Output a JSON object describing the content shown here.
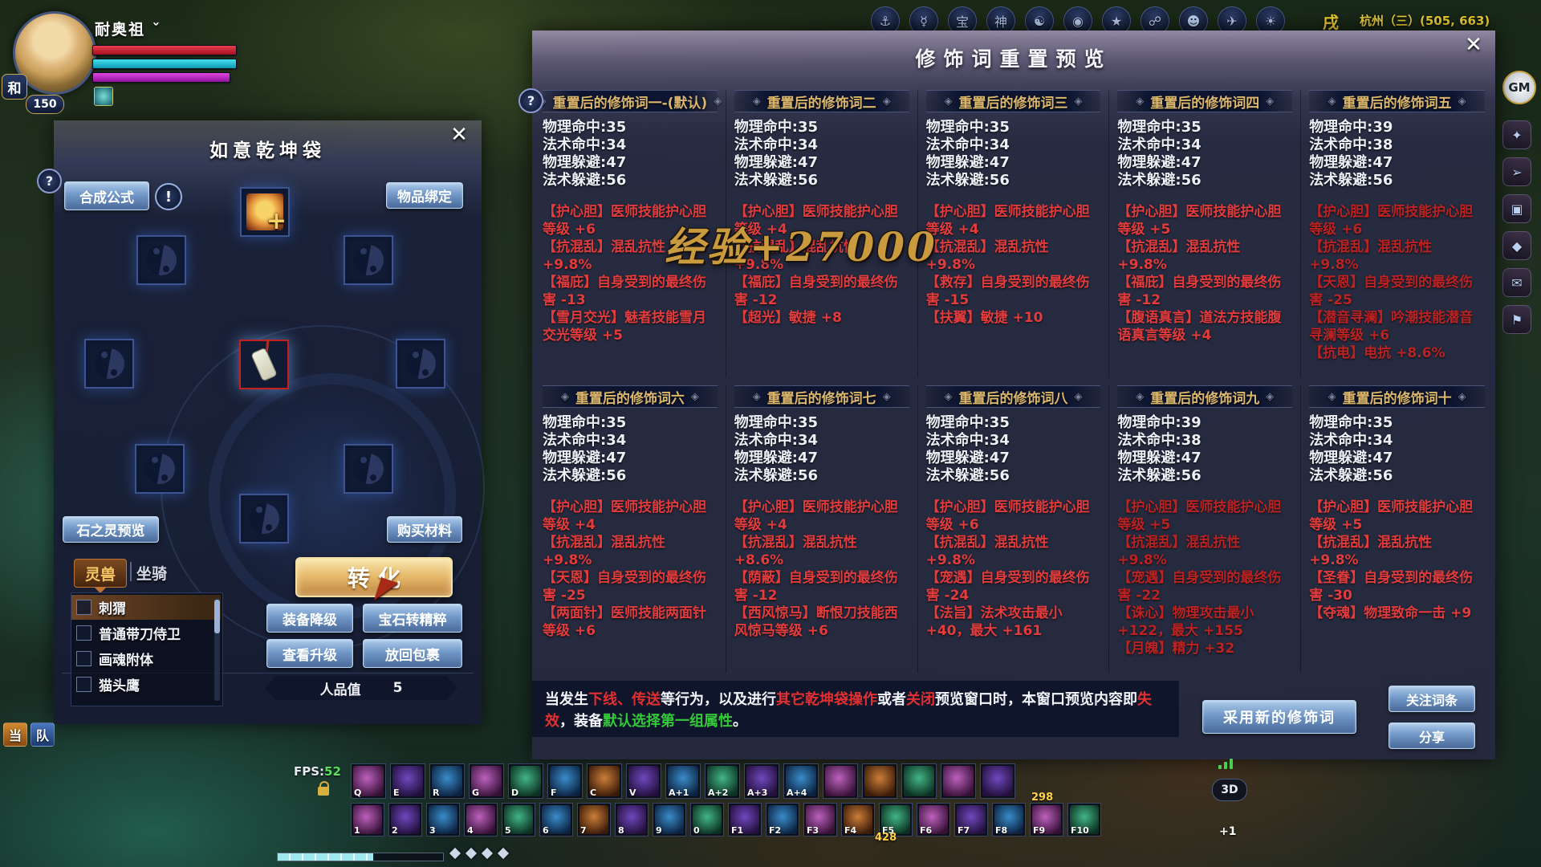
{
  "hud": {
    "player": {
      "name": "耐奥祖 ˇ",
      "level": "150",
      "badge": "和"
    },
    "top_right": {
      "time": "戌",
      "location": "杭州（三）(505, 663)",
      "gm": "GM",
      "icons": [
        "⚓",
        "☿",
        "宝",
        "神",
        "☯",
        "◉",
        "★",
        "☍",
        "☻",
        "✈",
        "☀"
      ]
    },
    "right_edge_icons": [
      "✦",
      "➢",
      "▣",
      "◆",
      "✉",
      "⚑"
    ],
    "fps_label": "FPS:",
    "fps_value": "52",
    "xp_float": "经验+27000",
    "chat_tabs": [
      "当",
      "队"
    ],
    "skill_row1": [
      "Q",
      "E",
      "R",
      "G",
      "D",
      "F",
      "C",
      "V",
      "A+1",
      "A+2",
      "A+3",
      "A+4",
      "",
      "",
      "",
      "",
      ""
    ],
    "skill_row2": [
      "1",
      "2",
      "3",
      "4",
      "5",
      "6",
      "7",
      "8",
      "9",
      "0",
      "F1",
      "F2",
      "F3",
      "F4",
      "F5",
      "F6",
      "F7",
      "F8",
      "F9",
      "F10"
    ],
    "count_row1": "298",
    "count_row2": "428",
    "plus_one": "+1",
    "view_3d": "3D"
  },
  "bag_window": {
    "title": "如意乾坤袋",
    "help": "?",
    "alert": "!",
    "buttons": {
      "formula": "合成公式",
      "bind": "物品绑定",
      "stone_preview": "石之灵预览",
      "buy": "购买材料",
      "transform": "转化",
      "downgrade": "装备降级",
      "gem": "宝石转精粹",
      "upgrade": "查看升级",
      "return": "放回包裹"
    },
    "karma_label": "人品值",
    "karma_value": "5",
    "tabs": {
      "pet": "灵兽",
      "mount": "坐骑"
    },
    "list": [
      "刺猬",
      "普通带刀侍卫",
      "画魂附体",
      "猫头鹰"
    ]
  },
  "preview_window": {
    "title": "修饰词重置预览",
    "groups": [
      {
        "title": "重置后的修饰词一-(默认)",
        "stats": [
          "物理命中:35",
          "法术命中:34",
          "物理躲避:47",
          "法术躲避:56"
        ],
        "mods": [
          "【护心胆】医师技能护心胆等级 +6",
          "【抗混乱】混乱抗性 +9.8%",
          "【福庇】自身受到的最终伤害 -13",
          "【雪月交光】魅者技能雪月交光等级 +5"
        ]
      },
      {
        "title": "重置后的修饰词二",
        "stats": [
          "物理命中:35",
          "法术命中:34",
          "物理躲避:47",
          "法术躲避:56"
        ],
        "mods": [
          "【护心胆】医师技能护心胆等级 +4",
          "【抗混乱】混乱抗性 +9.8%",
          "【福庇】自身受到的最终伤害 -12",
          "【超光】敏捷 +8"
        ]
      },
      {
        "title": "重置后的修饰词三",
        "stats": [
          "物理命中:35",
          "法术命中:34",
          "物理躲避:47",
          "法术躲避:56"
        ],
        "mods": [
          "【护心胆】医师技能护心胆等级 +4",
          "【抗混乱】混乱抗性 +9.8%",
          "【救存】自身受到的最终伤害 -15",
          "【扶翼】敏捷 +10"
        ]
      },
      {
        "title": "重置后的修饰词四",
        "stats": [
          "物理命中:35",
          "法术命中:34",
          "物理躲避:47",
          "法术躲避:56"
        ],
        "mods": [
          "【护心胆】医师技能护心胆等级 +5",
          "【抗混乱】混乱抗性 +9.8%",
          "【福庇】自身受到的最终伤害 -12",
          "【腹语真言】道法方技能腹语真言等级 +4"
        ]
      },
      {
        "title": "重置后的修饰词五",
        "stats": [
          "物理命中:39",
          "法术命中:38",
          "物理躲避:47",
          "法术躲避:56"
        ],
        "mods": [
          "【护心胆】医师技能护心胆等级 +6",
          "【抗混乱】混乱抗性 +9.8%",
          "【天恩】自身受到的最终伤害 -25",
          "【潜音寻澜】吟潮技能潜音寻澜等级 +6",
          "【抗电】电抗 +8.6%"
        ]
      },
      {
        "title": "重置后的修饰词六",
        "stats": [
          "物理命中:35",
          "法术命中:34",
          "物理躲避:47",
          "法术躲避:56"
        ],
        "mods": [
          "【护心胆】医师技能护心胆等级 +4",
          "【抗混乱】混乱抗性 +9.8%",
          "【天恩】自身受到的最终伤害 -25",
          "【两面针】医师技能两面针等级 +6"
        ]
      },
      {
        "title": "重置后的修饰词七",
        "stats": [
          "物理命中:35",
          "法术命中:34",
          "物理躲避:47",
          "法术躲避:56"
        ],
        "mods": [
          "【护心胆】医师技能护心胆等级 +4",
          "【抗混乱】混乱抗性 +8.6%",
          "【荫蔽】自身受到的最终伤害 -12",
          "【西风惊马】断恨刀技能西风惊马等级 +6"
        ]
      },
      {
        "title": "重置后的修饰词八",
        "stats": [
          "物理命中:35",
          "法术命中:34",
          "物理躲避:47",
          "法术躲避:56"
        ],
        "mods": [
          "【护心胆】医师技能护心胆等级 +6",
          "【抗混乱】混乱抗性 +9.8%",
          "【宠遇】自身受到的最终伤害 -24",
          "【法旨】法术攻击最小 +40，最大 +161"
        ]
      },
      {
        "title": "重置后的修饰词九",
        "stats": [
          "物理命中:39",
          "法术命中:38",
          "物理躲避:47",
          "法术躲避:56"
        ],
        "mods": [
          "【护心胆】医师技能护心胆等级 +5",
          "【抗混乱】混乱抗性 +9.8%",
          "【宠遇】自身受到的最终伤害 -22",
          "【诛心】物理攻击最小 +122，最大 +155",
          "【月魄】精力 +32"
        ]
      },
      {
        "title": "重置后的修饰词十",
        "stats": [
          "物理命中:35",
          "法术命中:34",
          "物理躲避:47",
          "法术躲避:56"
        ],
        "mods": [
          "【护心胆】医师技能护心胆等级 +5",
          "【抗混乱】混乱抗性 +9.8%",
          "【圣眷】自身受到的最终伤害 -30",
          "【夺魂】物理致命一击 +9"
        ]
      }
    ],
    "note": [
      {
        "t": "当发生"
      },
      {
        "t": "下线、传送"
      },
      {
        "t": "等行为，以及进行"
      },
      {
        "t": "其它乾坤袋操作"
      },
      {
        "t": "或者"
      },
      {
        "t": "关闭"
      },
      {
        "t": "预览窗口时，本窗口预览内容即"
      },
      {
        "t": "失效"
      },
      {
        "t": "，装备"
      },
      {
        "t": "默认选择第一组属性"
      },
      {
        "t": "。"
      }
    ],
    "buttons": {
      "apply": "采用新的修饰词",
      "follow": "关注词条",
      "share": "分享"
    }
  }
}
